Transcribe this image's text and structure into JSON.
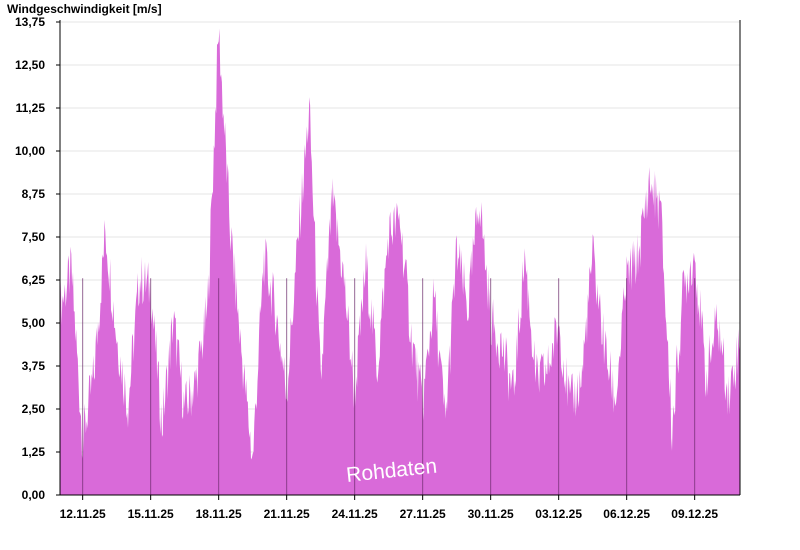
{
  "chart_data": {
    "type": "area",
    "title": "Windgeschwindigkeit [m/s]",
    "watermark": "Rohdaten",
    "xlabel": "",
    "ylabel": "",
    "ylim": [
      0,
      13.75
    ],
    "yticks": [
      "0,00",
      "1,25",
      "2,50",
      "3,75",
      "5,00",
      "6,25",
      "7,50",
      "8,75",
      "10,00",
      "11,25",
      "12,50",
      "13,75"
    ],
    "yticks_values": [
      0,
      1.25,
      2.5,
      3.75,
      5,
      6.25,
      7.5,
      8.75,
      10,
      11.25,
      12.5,
      13.75
    ],
    "xlim": [
      "2025-11-11",
      "2025-12-11"
    ],
    "xticks": [
      "12.11.25",
      "15.11.25",
      "18.11.25",
      "21.11.25",
      "24.11.25",
      "27.11.25",
      "30.11.25",
      "03.12.25",
      "06.12.25",
      "09.12.25"
    ],
    "xticks_dates": [
      "2025-11-12",
      "2025-11-15",
      "2025-11-18",
      "2025-11-21",
      "2025-11-24",
      "2025-11-27",
      "2025-11-30",
      "2025-12-03",
      "2025-12-06",
      "2025-12-09"
    ],
    "grid": true,
    "color": "#d96ad9",
    "series": [
      {
        "x": [
          "2025-11-11",
          "2025-11-11 12:00",
          "2025-11-12",
          "2025-11-12 12:00",
          "2025-11-13",
          "2025-11-13 12:00",
          "2025-11-14",
          "2025-11-14 12:00",
          "2025-11-15",
          "2025-11-15 12:00",
          "2025-11-16",
          "2025-11-16 12:00",
          "2025-11-17",
          "2025-11-17 12:00",
          "2025-11-18",
          "2025-11-18 12:00",
          "2025-11-19",
          "2025-11-19 12:00",
          "2025-11-20",
          "2025-11-20 12:00",
          "2025-11-21",
          "2025-11-21 12:00",
          "2025-11-22",
          "2025-11-22 12:00",
          "2025-11-23",
          "2025-11-23 12:00",
          "2025-11-24",
          "2025-11-24 12:00",
          "2025-11-25",
          "2025-11-25 12:00",
          "2025-11-26",
          "2025-11-26 12:00",
          "2025-11-27",
          "2025-11-27 12:00",
          "2025-11-28",
          "2025-11-28 12:00",
          "2025-11-29",
          "2025-11-29 12:00",
          "2025-11-30",
          "2025-11-30 12:00",
          "2025-12-01",
          "2025-12-01 12:00",
          "2025-12-02",
          "2025-12-02 12:00",
          "2025-12-03",
          "2025-12-03 12:00",
          "2025-12-04",
          "2025-12-04 12:00",
          "2025-12-05",
          "2025-12-05 12:00",
          "2025-12-06",
          "2025-12-06 12:00",
          "2025-12-07",
          "2025-12-07 12:00",
          "2025-12-08",
          "2025-12-08 12:00",
          "2025-12-09",
          "2025-12-09 12:00",
          "2025-12-10",
          "2025-12-10 12:00",
          "2025-12-11"
        ],
        "values": [
          5.5,
          6.5,
          1.6,
          3.5,
          7.7,
          4.6,
          2.6,
          6.3,
          6.0,
          2.0,
          5.1,
          2.5,
          3.3,
          5.3,
          13.5,
          7.8,
          4.2,
          1.0,
          6.9,
          5.4,
          3.0,
          7.4,
          11.2,
          3.2,
          8.6,
          6.4,
          2.9,
          6.7,
          3.7,
          7.6,
          8.0,
          4.6,
          2.6,
          5.8,
          2.1,
          7.1,
          5.4,
          8.7,
          5.1,
          4.3,
          2.9,
          7.0,
          3.3,
          3.6,
          5.0,
          2.6,
          3.3,
          7.0,
          4.4,
          2.7,
          6.3,
          6.9,
          9.1,
          8.3,
          1.8,
          6.0,
          7.0,
          3.4,
          5.1,
          2.9,
          4.5
        ]
      }
    ]
  }
}
